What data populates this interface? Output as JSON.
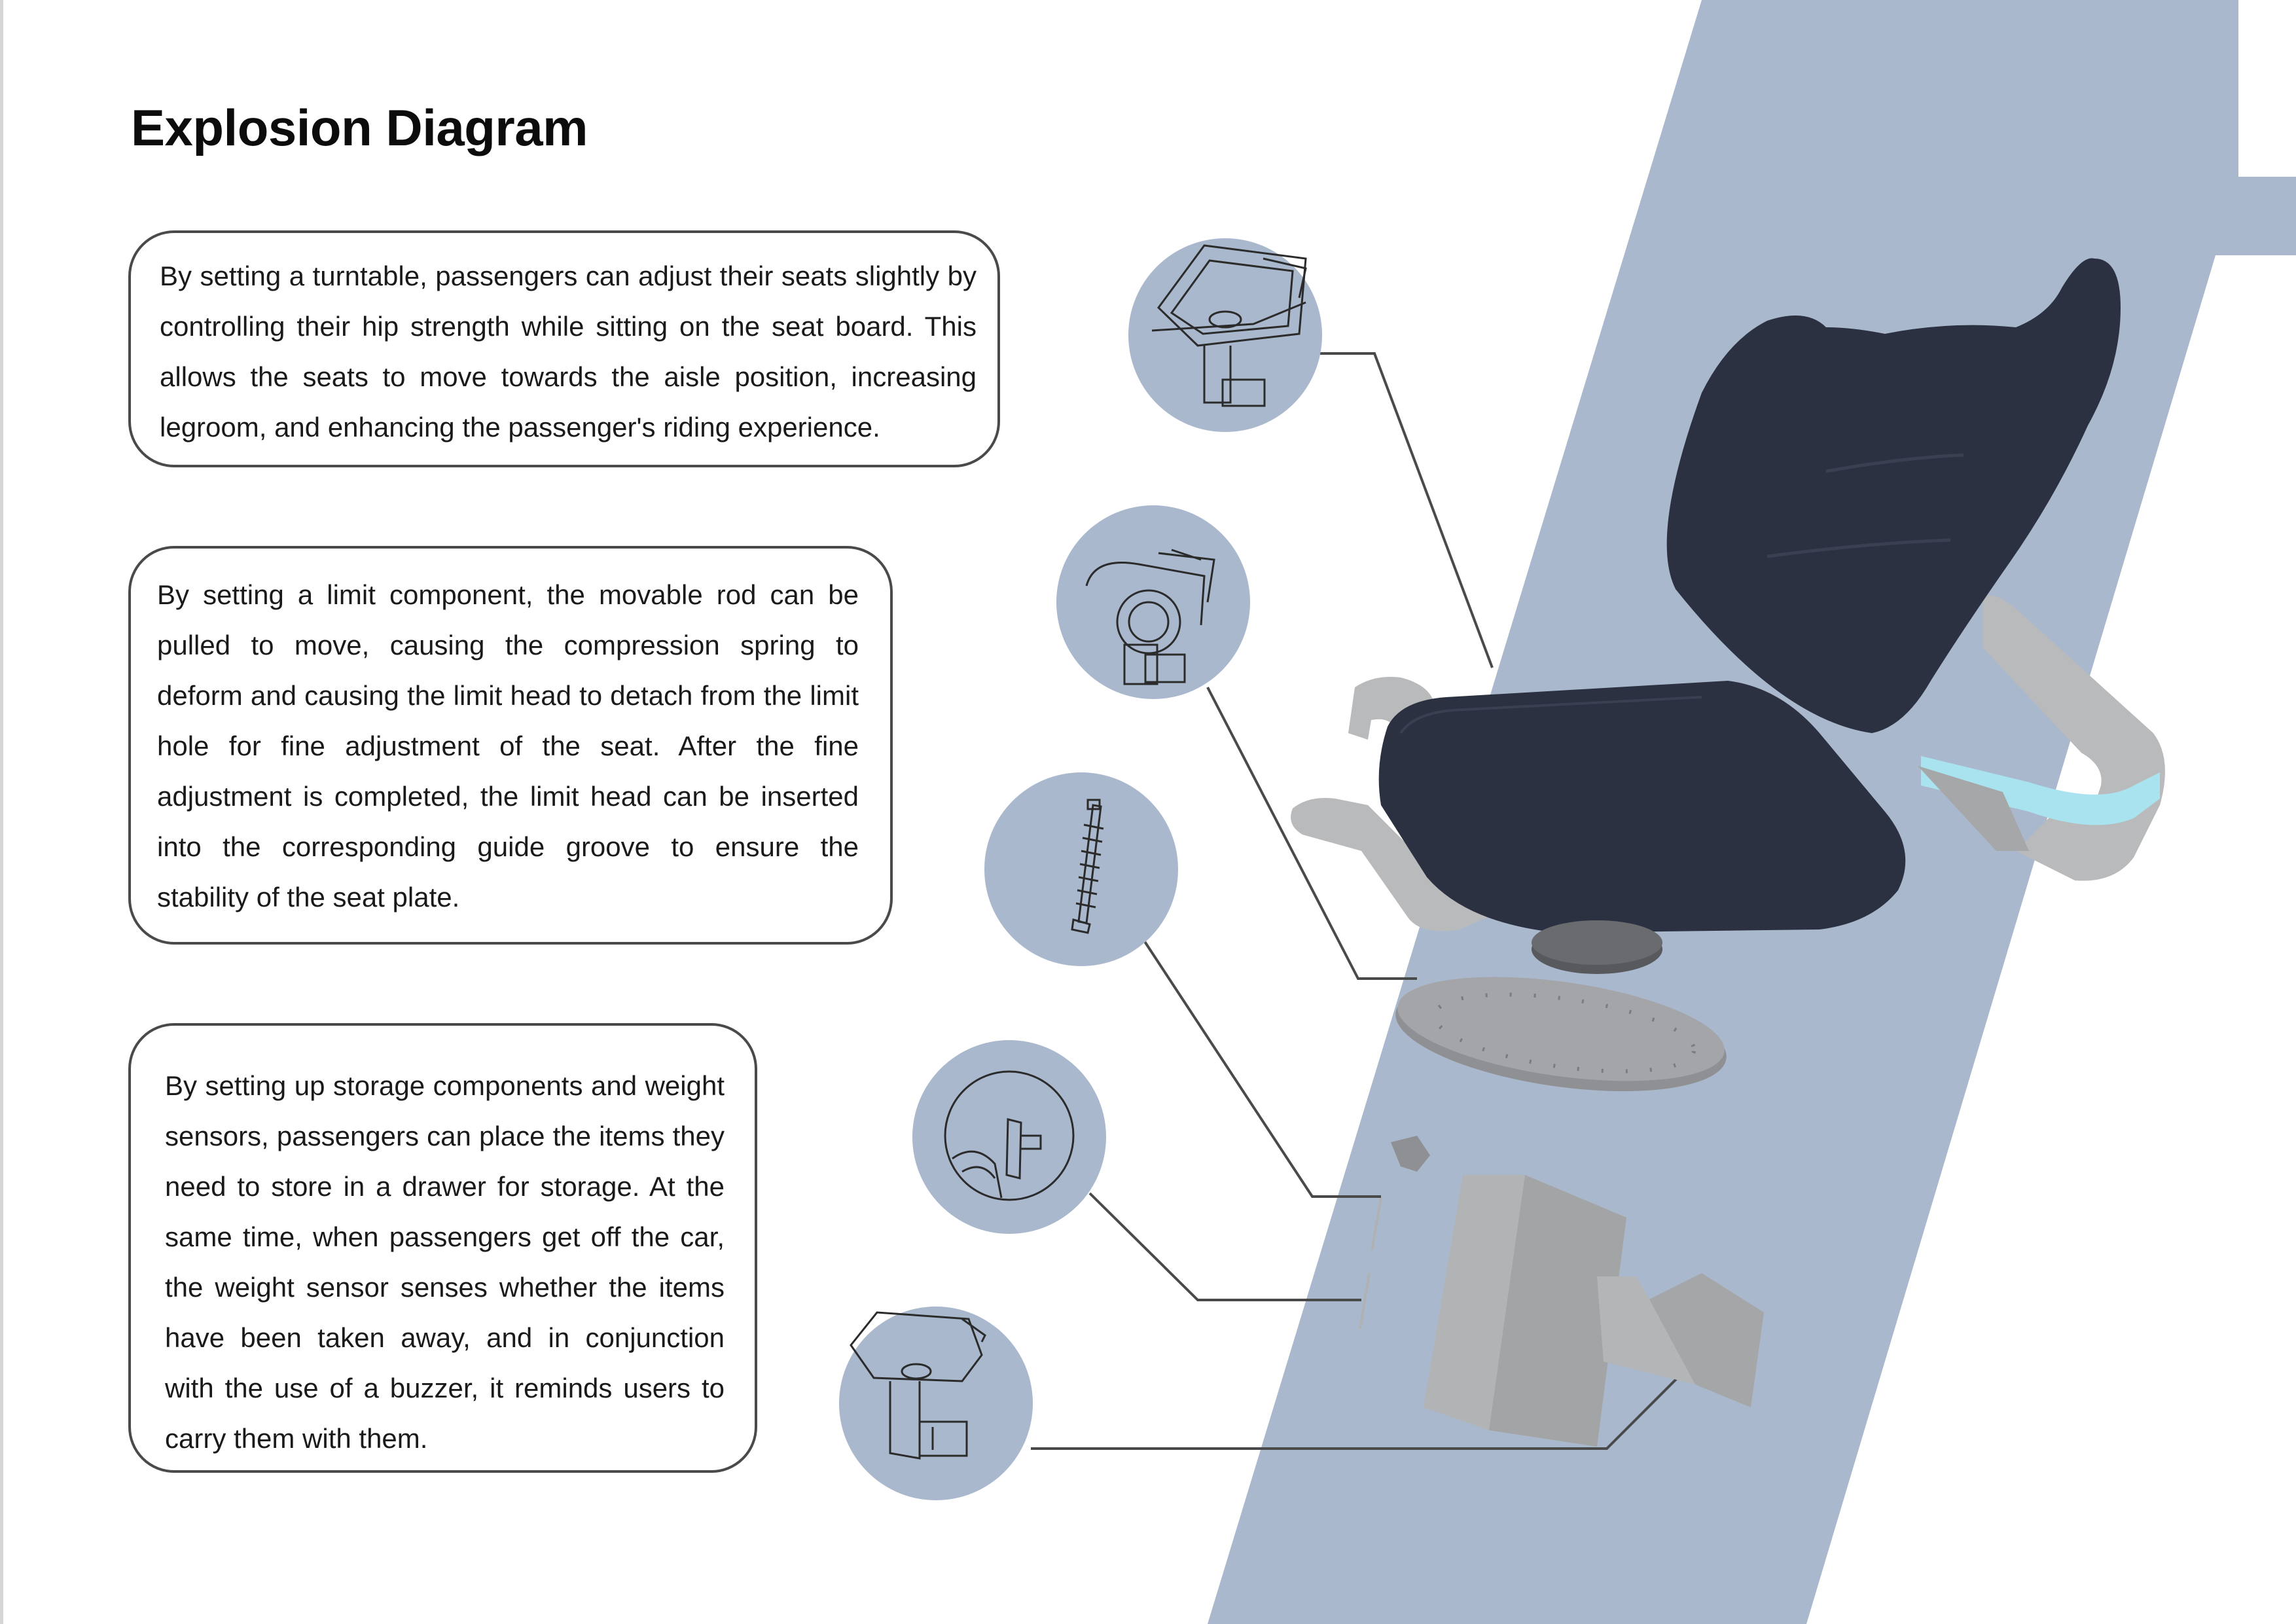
{
  "title": "Explosion Diagram",
  "notes": [
    {
      "text": "By setting a turntable, passengers can adjust their seats slightly by controlling their hip strength while sitting on the seat board. This allows the seats to move towards the aisle position, increasing legroom, and enhancing the passenger's riding experience."
    },
    {
      "text": "By setting a limit component, the movable rod can be pulled to move, causing the compression spring to deform and causing the limit head to detach from the limit hole for fine adjustment of the seat. After the fine adjustment is completed, the limit head can be inserted into the corresponding guide groove to ensure the stability of the seat plate."
    },
    {
      "text": "By setting up storage components and weight sensors, passengers can place the items they need to store in a drawer for storage. At the same time, when passengers get off the car, the weight sensor senses whether the items have been taken away, and in conjunction with the use of a buzzer, it reminds users to carry them with them."
    }
  ],
  "detail_callouts": [
    {
      "part": "seat-board-with-turntable"
    },
    {
      "part": "turntable-limit-assembly"
    },
    {
      "part": "compression-spring-rod"
    },
    {
      "part": "limit-head-guide-groove"
    },
    {
      "part": "storage-drawer-assembly"
    }
  ],
  "exploded_parts": [
    "seat-backrest",
    "seat-cushion",
    "left-armrest",
    "right-armrest",
    "rotation-puck",
    "turntable-plate",
    "limit-pin",
    "storage-cabinet",
    "drawer"
  ],
  "colors": {
    "band": "#a9b8cc",
    "callout_circle": "#a9b8cc",
    "seat_fabric": "#2b3140",
    "frame_grey": "#b9babc",
    "accent_light": "#a9e3f0",
    "leader_line": "#4a4a4a"
  }
}
